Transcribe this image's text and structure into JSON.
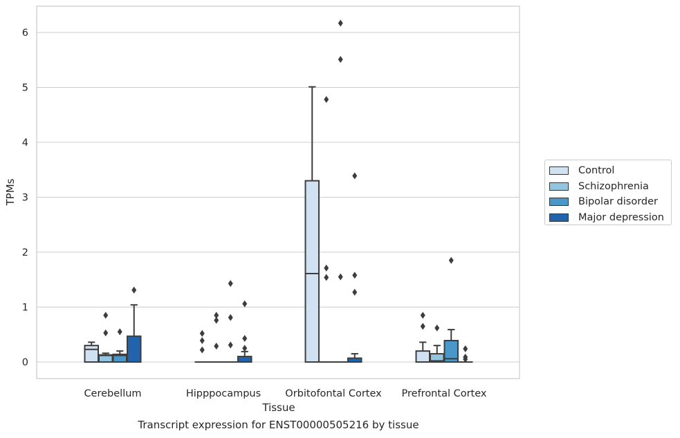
{
  "caption": "Transcript expression for ENST00000505216 by tissue",
  "chart_data": {
    "type": "box",
    "xlabel": "Tissue",
    "ylabel": "TPMs",
    "ylim": [
      -0.3,
      6.5
    ],
    "yticks": [
      0,
      1,
      2,
      3,
      4,
      5,
      6
    ],
    "grid": "horizontal",
    "legend_position": "right",
    "categories": [
      "Cerebellum",
      "Hipppocampus",
      "Orbitofontal Cortex",
      "Prefrontal Cortex"
    ],
    "series": [
      {
        "name": "Control",
        "color": "#d0e1f2",
        "boxes": [
          {
            "q1": 0,
            "median": 0.23,
            "q3": 0.3,
            "whisker_low": 0,
            "whisker_high": 0.36,
            "outliers": []
          },
          {
            "q1": 0,
            "median": 0,
            "q3": 0,
            "whisker_low": 0,
            "whisker_high": 0,
            "outliers": [
              0.52,
              0.39,
              0.22
            ]
          },
          {
            "q1": 0,
            "median": 1.61,
            "q3": 3.3,
            "whisker_low": 0,
            "whisker_high": 5.01,
            "outliers": []
          },
          {
            "q1": 0,
            "median": 0,
            "q3": 0.2,
            "whisker_low": 0,
            "whisker_high": 0.36,
            "outliers": [
              0.85,
              0.65
            ]
          }
        ]
      },
      {
        "name": "Schizophrenia",
        "color": "#94c4df",
        "boxes": [
          {
            "q1": 0,
            "median": 0.12,
            "q3": 0.13,
            "whisker_low": 0,
            "whisker_high": 0.16,
            "outliers": [
              0.85,
              0.53
            ]
          },
          {
            "q1": 0,
            "median": 0,
            "q3": 0,
            "whisker_low": 0,
            "whisker_high": 0,
            "outliers": [
              0.85,
              0.76,
              0.29
            ]
          },
          {
            "q1": 0,
            "median": 0,
            "q3": 0,
            "whisker_low": 0,
            "whisker_high": 0,
            "outliers": [
              4.78,
              1.71,
              1.54
            ]
          },
          {
            "q1": 0,
            "median": 0.02,
            "q3": 0.15,
            "whisker_low": 0,
            "whisker_high": 0.3,
            "outliers": [
              0.62
            ]
          }
        ]
      },
      {
        "name": "Bipolar disorder",
        "color": "#4a98c9",
        "boxes": [
          {
            "q1": 0,
            "median": 0.12,
            "q3": 0.14,
            "whisker_low": 0,
            "whisker_high": 0.2,
            "outliers": [
              0.55
            ]
          },
          {
            "q1": 0,
            "median": 0,
            "q3": 0,
            "whisker_low": 0,
            "whisker_high": 0,
            "outliers": [
              1.43,
              0.81,
              0.31
            ]
          },
          {
            "q1": 0,
            "median": 0,
            "q3": 0,
            "whisker_low": 0,
            "whisker_high": 0,
            "outliers": [
              6.17,
              5.51,
              1.55
            ]
          },
          {
            "q1": 0,
            "median": 0.06,
            "q3": 0.39,
            "whisker_low": 0,
            "whisker_high": 0.59,
            "outliers": [
              1.85
            ]
          }
        ]
      },
      {
        "name": "Major depression",
        "color": "#2164ab",
        "boxes": [
          {
            "q1": 0,
            "median": 0,
            "q3": 0.47,
            "whisker_low": 0,
            "whisker_high": 1.04,
            "outliers": [
              1.31
            ]
          },
          {
            "q1": 0,
            "median": 0,
            "q3": 0.1,
            "whisker_low": 0,
            "whisker_high": 0.19,
            "outliers": [
              1.06,
              0.43,
              0.25
            ]
          },
          {
            "q1": 0,
            "median": 0,
            "q3": 0.07,
            "whisker_low": 0,
            "whisker_high": 0.15,
            "outliers": [
              3.39,
              1.58,
              1.27
            ]
          },
          {
            "q1": 0,
            "median": 0,
            "q3": 0,
            "whisker_low": 0,
            "whisker_high": 0,
            "outliers": [
              0.24,
              0.09,
              0.05
            ]
          }
        ]
      }
    ]
  }
}
